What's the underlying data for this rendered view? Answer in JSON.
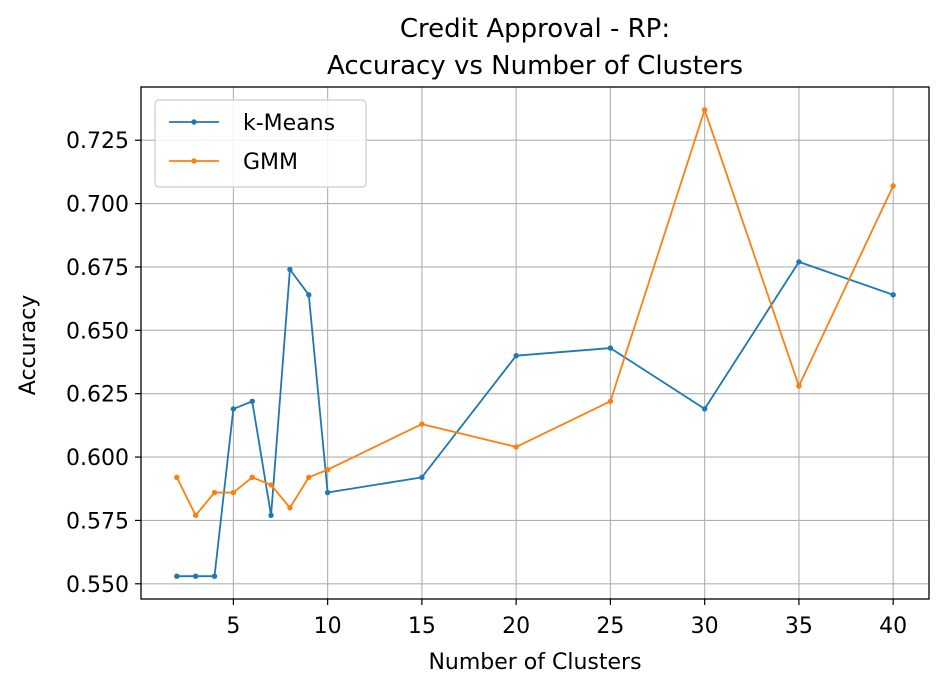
{
  "chart_data": {
    "type": "line",
    "title_line1": "Credit Approval - RP:",
    "title_line2": "Accuracy vs Number of Clusters",
    "xlabel": "Number of Clusters",
    "ylabel": "Accuracy",
    "xlim": [
      0.1,
      41.9
    ],
    "ylim": [
      0.544,
      0.746
    ],
    "xticks": [
      5,
      10,
      15,
      20,
      25,
      30,
      35,
      40
    ],
    "xtick_labels": [
      "5",
      "10",
      "15",
      "20",
      "25",
      "30",
      "35",
      "40"
    ],
    "yticks": [
      0.55,
      0.575,
      0.6,
      0.625,
      0.65,
      0.675,
      0.7,
      0.725
    ],
    "ytick_labels": [
      "0.550",
      "0.575",
      "0.600",
      "0.625",
      "0.650",
      "0.675",
      "0.700",
      "0.725"
    ],
    "grid": true,
    "legend_position": "top-left",
    "x": [
      2,
      3,
      4,
      5,
      6,
      7,
      8,
      9,
      10,
      15,
      20,
      25,
      30,
      35,
      40
    ],
    "series": [
      {
        "name": "k-Means",
        "color": "#1f77b4",
        "values": [
          0.553,
          0.553,
          0.553,
          0.619,
          0.622,
          0.577,
          0.674,
          0.664,
          0.586,
          0.592,
          0.64,
          0.643,
          0.619,
          0.677,
          0.664
        ]
      },
      {
        "name": "GMM",
        "color": "#ff7f0e",
        "values": [
          0.592,
          0.577,
          0.586,
          0.586,
          0.592,
          0.589,
          0.58,
          0.592,
          0.595,
          0.613,
          0.604,
          0.622,
          0.737,
          0.628,
          0.707
        ]
      }
    ]
  }
}
